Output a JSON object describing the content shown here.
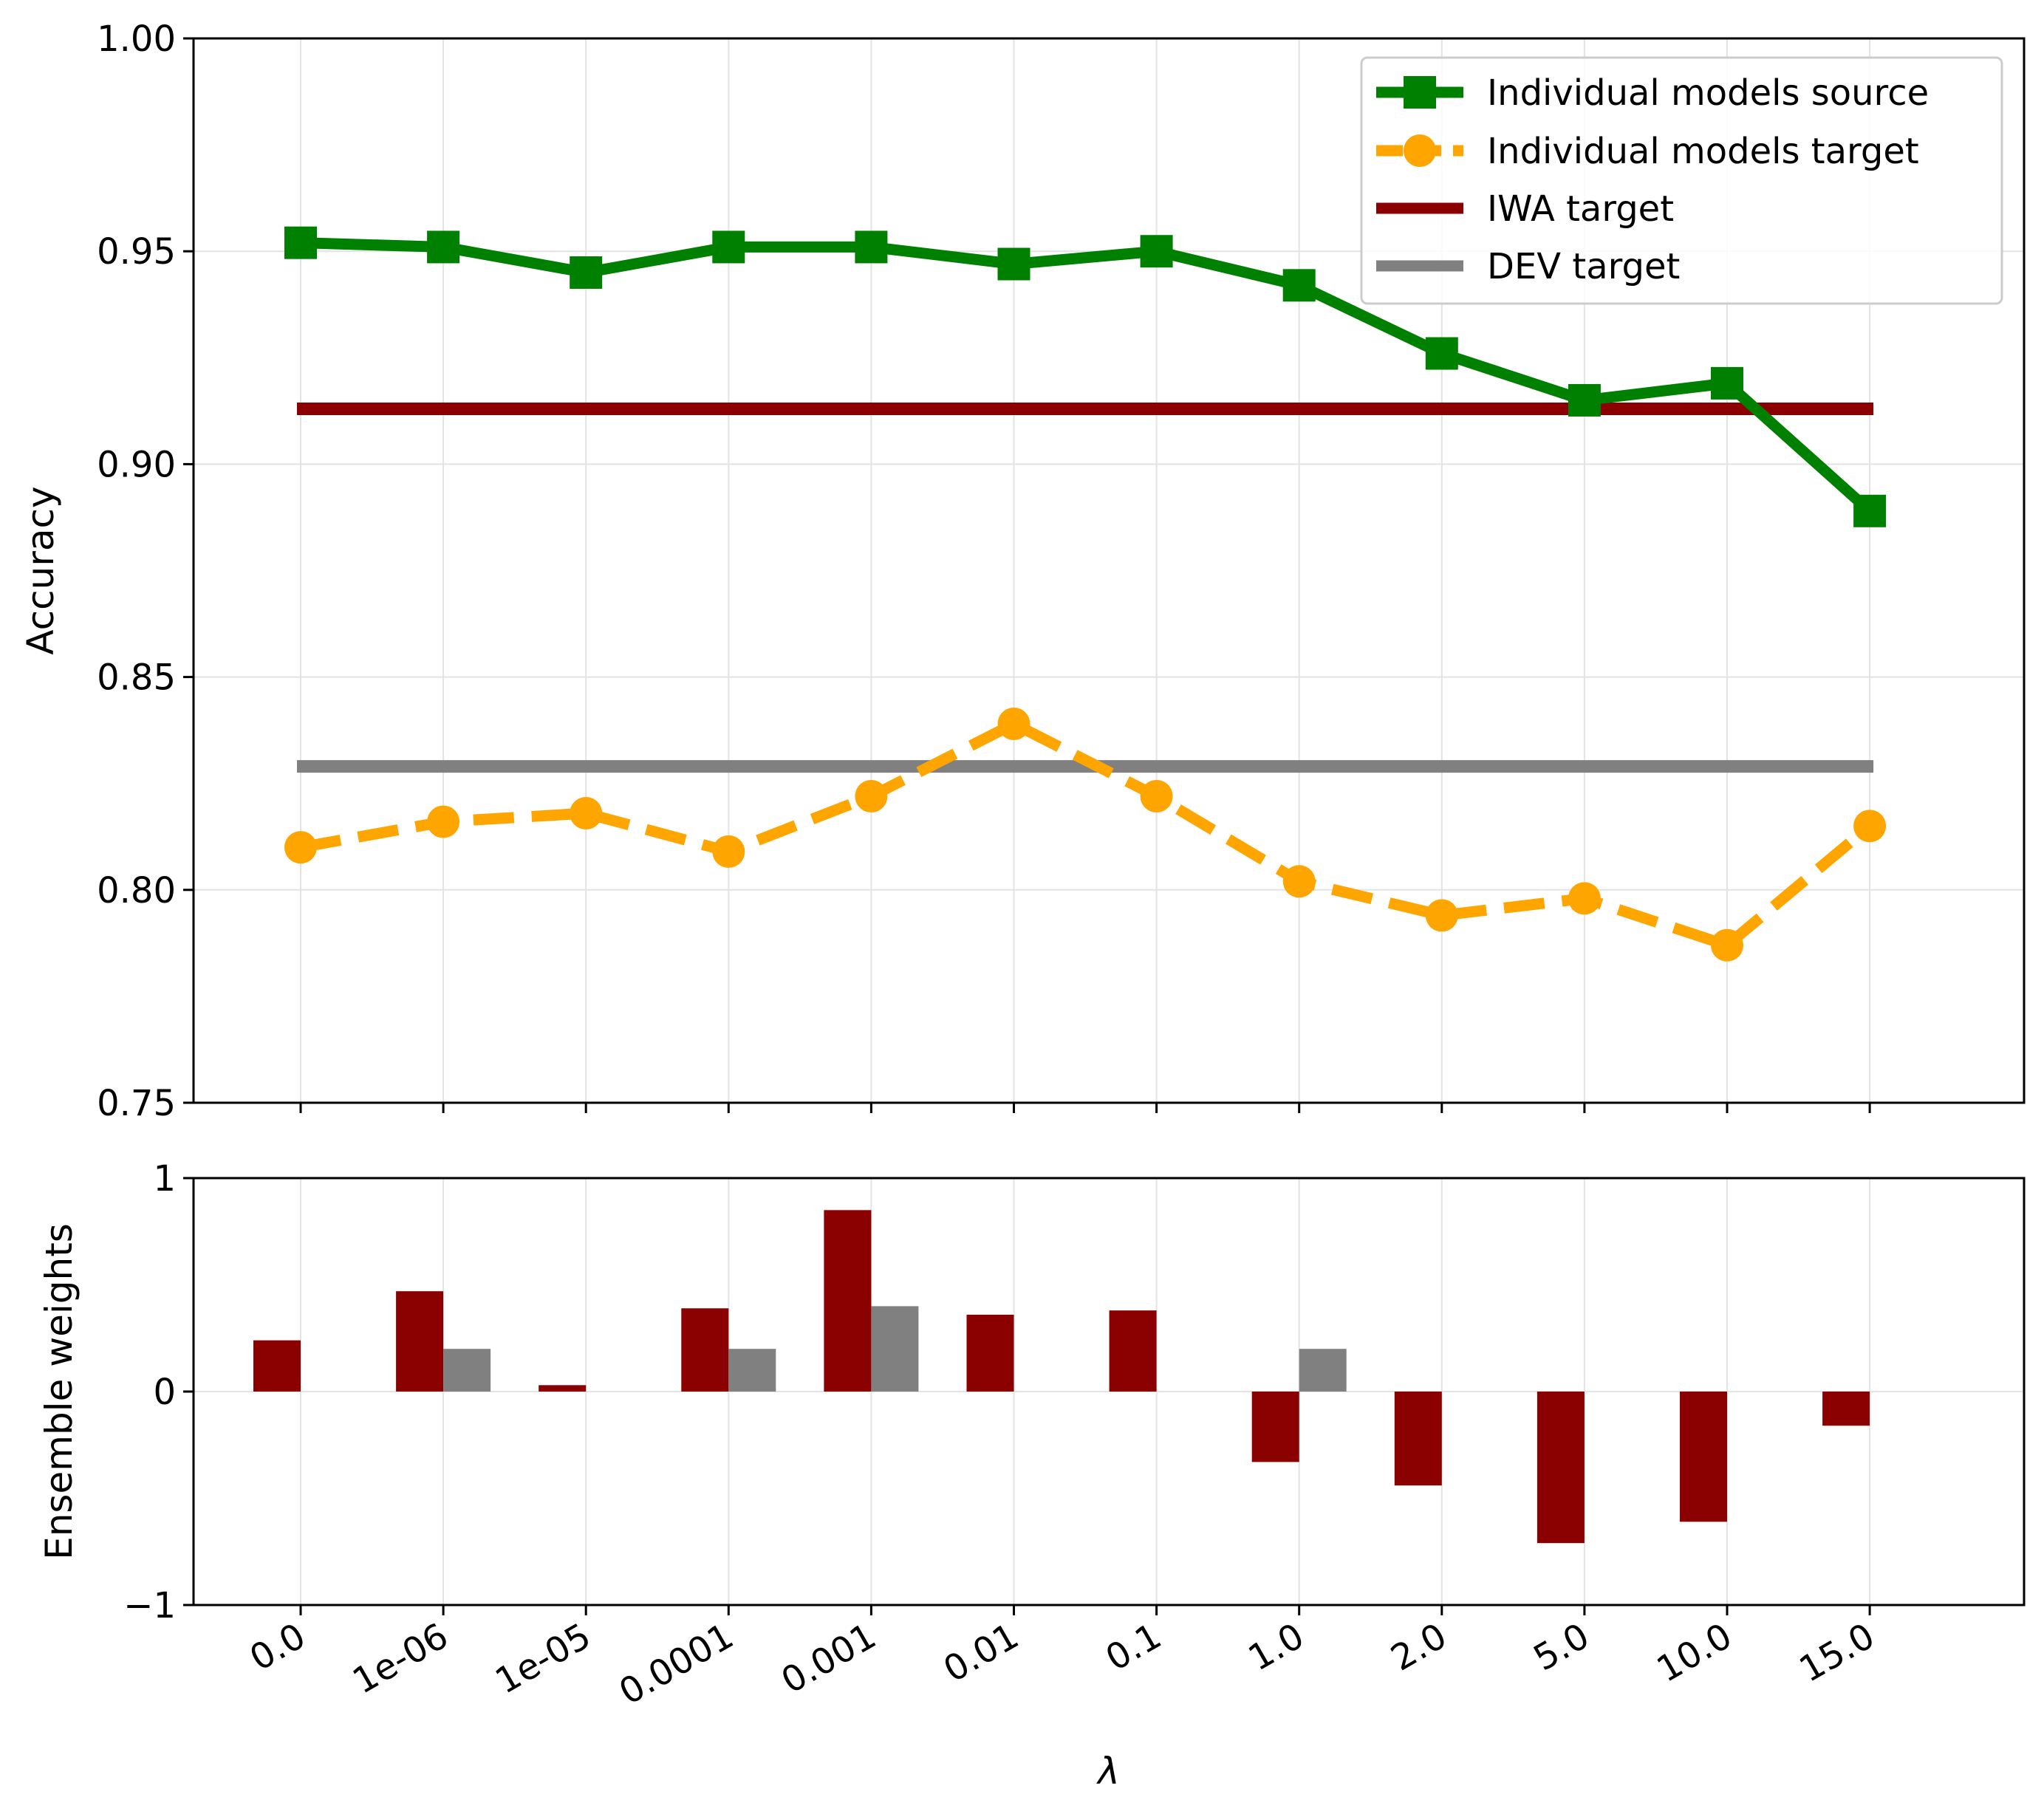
{
  "chart_data": [
    {
      "type": "line",
      "title": "",
      "xlabel": "",
      "ylabel": "Accuracy",
      "categories": [
        "0.0",
        "1e-06",
        "1e-05",
        "0.0001",
        "0.001",
        "0.01",
        "0.1",
        "1.0",
        "2.0",
        "5.0",
        "10.0",
        "15.0"
      ],
      "ylim": [
        0.75,
        1.0
      ],
      "yticks": [
        "0.75",
        "0.80",
        "0.85",
        "0.90",
        "0.95",
        "1.00"
      ],
      "grid": true,
      "legend_position": "top-right",
      "series": [
        {
          "name": "Individual models source",
          "color": "#008000",
          "marker": "square",
          "linestyle": "solid",
          "values": [
            0.952,
            0.951,
            0.945,
            0.951,
            0.951,
            0.947,
            0.95,
            0.942,
            0.926,
            0.915,
            0.919,
            0.889
          ]
        },
        {
          "name": "Individual models target",
          "color": "#FFA500",
          "marker": "circle",
          "linestyle": "dashed",
          "values": [
            0.81,
            0.816,
            0.818,
            0.809,
            0.822,
            0.839,
            0.822,
            0.802,
            0.794,
            0.798,
            0.787,
            0.815
          ]
        },
        {
          "name": "IWA target",
          "color": "#8B0000",
          "marker": "none",
          "linestyle": "solid",
          "constant": 0.913
        },
        {
          "name": "DEV target",
          "color": "#808080",
          "marker": "none",
          "linestyle": "solid",
          "constant": 0.829
        }
      ]
    },
    {
      "type": "bar",
      "title": "",
      "xlabel": "λ",
      "ylabel": "Ensemble weights",
      "categories": [
        "0.0",
        "1e-06",
        "1e-05",
        "0.0001",
        "0.001",
        "0.01",
        "0.1",
        "1.0",
        "2.0",
        "5.0",
        "10.0",
        "15.0"
      ],
      "ylim": [
        -1,
        1
      ],
      "yticks": [
        "−1",
        "0",
        "1"
      ],
      "grid": true,
      "series": [
        {
          "name": "IWA",
          "color": "#8B0000",
          "values": [
            0.24,
            0.47,
            0.03,
            0.39,
            0.85,
            0.36,
            0.38,
            -0.33,
            -0.44,
            -0.71,
            -0.61,
            -0.16
          ]
        },
        {
          "name": "DEV",
          "color": "#808080",
          "values": [
            0,
            0.2,
            0,
            0.2,
            0.4,
            0,
            0,
            0.2,
            0,
            0,
            0,
            0
          ]
        }
      ]
    }
  ]
}
